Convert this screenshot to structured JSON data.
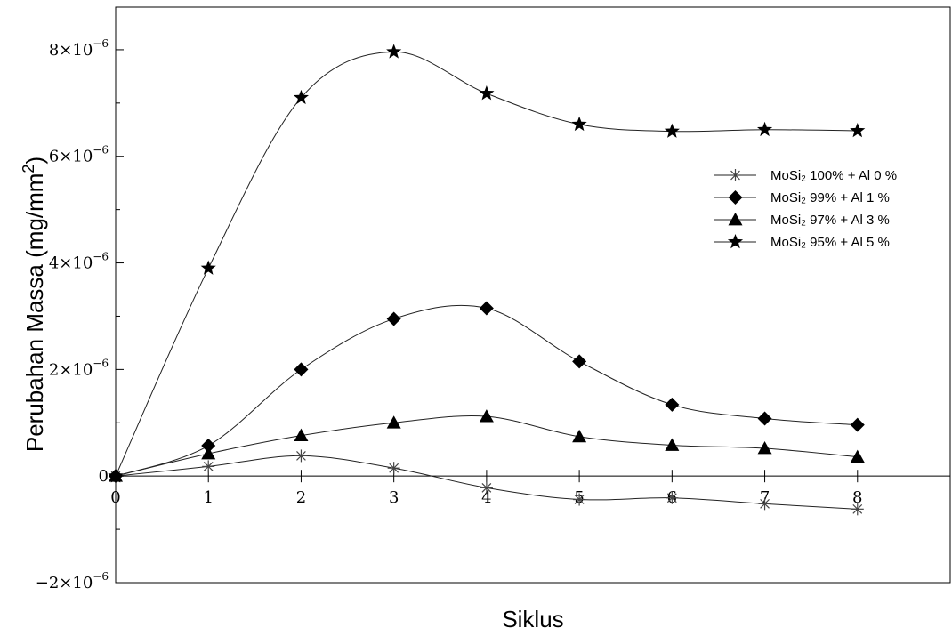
{
  "chart_data": {
    "type": "line",
    "xlabel": "Siklus",
    "ylabel_main": "Perubahan Massa (mg/mm",
    "ylabel_sup": "2",
    "ylabel_end": ")",
    "xlim": [
      0,
      9
    ],
    "ylim": [
      -2e-06,
      8.8e-06
    ],
    "x_ticks": [
      {
        "value": 0,
        "label": "0"
      },
      {
        "value": 1,
        "label": "1"
      },
      {
        "value": 2,
        "label": "2"
      },
      {
        "value": 3,
        "label": "3"
      },
      {
        "value": 4,
        "label": "4"
      },
      {
        "value": 5,
        "label": "5"
      },
      {
        "value": 6,
        "label": "6"
      },
      {
        "value": 7,
        "label": "7"
      },
      {
        "value": 8,
        "label": "8"
      }
    ],
    "y_ticks": [
      {
        "value": 8e-06,
        "mant": "8×10",
        "exp": "−6"
      },
      {
        "value": 6e-06,
        "mant": "6×10",
        "exp": "−6"
      },
      {
        "value": 4e-06,
        "mant": "4×10",
        "exp": "−6"
      },
      {
        "value": 2e-06,
        "mant": "2×10",
        "exp": "−6"
      },
      {
        "value": 0,
        "mant": "0",
        "exp": ""
      },
      {
        "value": -2e-06,
        "mant": "−2×10",
        "exp": "−6"
      }
    ],
    "grid": false,
    "legend_position": "right",
    "x": [
      0,
      1,
      2,
      3,
      4,
      5,
      6,
      7,
      8
    ],
    "series": [
      {
        "name": "MoSi₂ 100% + Al 0 %",
        "marker": "asterisk",
        "values": [
          0,
          1.8e-07,
          3.8e-07,
          1.5e-07,
          -2.2e-07,
          -4.4e-07,
          -4.1e-07,
          -5.2e-07,
          -6.2e-07
        ]
      },
      {
        "name": "MoSi₂   99% + Al 1 %",
        "marker": "diamond",
        "values": [
          0,
          5.7e-07,
          2e-06,
          2.95e-06,
          3.15e-06,
          2.15e-06,
          1.34e-06,
          1.08e-06,
          9.6e-07
        ]
      },
      {
        "name": "MoSi₂   97% + Al 3 %",
        "marker": "triangle",
        "values": [
          0,
          4.2e-07,
          7.6e-07,
          1e-06,
          1.12e-06,
          7.4e-07,
          5.8e-07,
          5.2e-07,
          3.6e-07
        ]
      },
      {
        "name": "MoSi₂   95% + Al 5 %",
        "marker": "star",
        "values": [
          0,
          3.9e-06,
          7.1e-06,
          7.96e-06,
          7.18e-06,
          6.6e-06,
          6.47e-06,
          6.5e-06,
          6.48e-06
        ]
      }
    ]
  }
}
